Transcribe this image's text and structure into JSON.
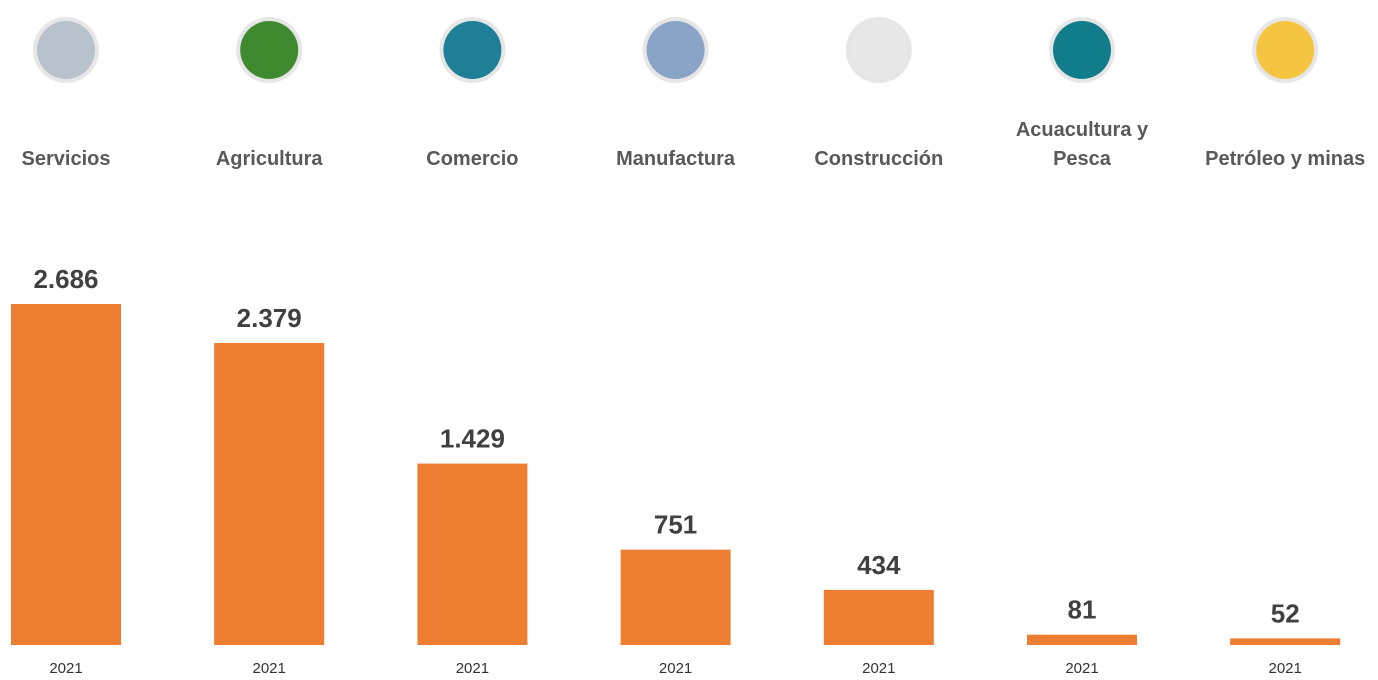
{
  "chart_data": {
    "type": "bar",
    "categories": [
      "Servicios",
      "Agricultura",
      "Comercio",
      "Manufactura",
      "Construcción",
      "Acuacultura y Pesca",
      "Petróleo y minas"
    ],
    "values": [
      2686,
      2379,
      1429,
      751,
      434,
      81,
      52
    ],
    "value_labels": [
      "2.686",
      "2.379",
      "1.429",
      "751",
      "434",
      "81",
      "52"
    ],
    "periods": [
      "2021",
      "2021",
      "2021",
      "2021",
      "2021",
      "2021",
      "2021"
    ],
    "color": "#ed7d31"
  }
}
